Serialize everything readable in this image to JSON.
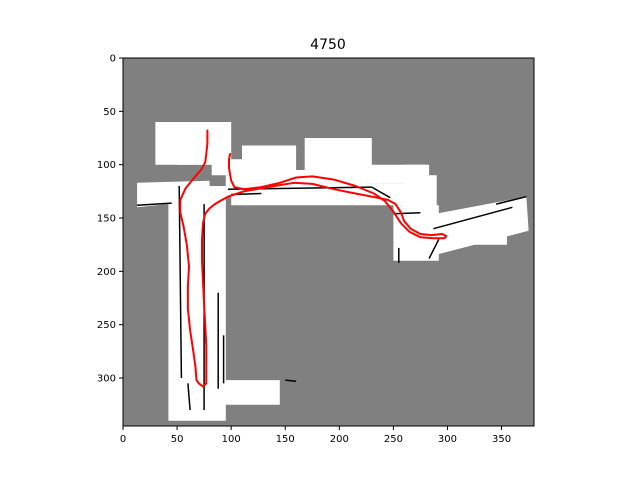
{
  "chart_data": {
    "type": "map",
    "title": "4750",
    "xlim": [
      0,
      380
    ],
    "ylim": [
      345,
      0
    ],
    "xticks": [
      0,
      50,
      100,
      150,
      200,
      250,
      300,
      350
    ],
    "yticks": [
      0,
      50,
      100,
      150,
      200,
      250,
      300
    ],
    "xtick_labels": [
      "0",
      "50",
      "100",
      "150",
      "200",
      "250",
      "300",
      "350"
    ],
    "ytick_labels": [
      "0",
      "50",
      "100",
      "150",
      "200",
      "250",
      "300"
    ],
    "colors": {
      "unknown": "#808080",
      "free": "#ffffff",
      "occupied": "#000000",
      "trajectory": "#ff0000"
    },
    "free_regions": [
      [
        [
          13,
          117
        ],
        [
          80,
          115
        ],
        [
          80,
          133
        ],
        [
          13,
          140
        ]
      ],
      [
        [
          42,
          120
        ],
        [
          95,
          120
        ],
        [
          95,
          340
        ],
        [
          42,
          340
        ]
      ],
      [
        [
          58,
          302
        ],
        [
          145,
          302
        ],
        [
          145,
          325
        ],
        [
          58,
          325
        ]
      ],
      [
        [
          82,
          95
        ],
        [
          115,
          95
        ],
        [
          115,
          110
        ],
        [
          82,
          110
        ]
      ],
      [
        [
          95,
          110
        ],
        [
          115,
          110
        ],
        [
          115,
          130
        ],
        [
          95,
          130
        ]
      ],
      [
        [
          100,
          105
        ],
        [
          225,
          105
        ],
        [
          225,
          118
        ],
        [
          100,
          118
        ]
      ],
      [
        [
          110,
          82
        ],
        [
          160,
          82
        ],
        [
          160,
          105
        ],
        [
          110,
          105
        ]
      ],
      [
        [
          168,
          75
        ],
        [
          230,
          75
        ],
        [
          230,
          105
        ],
        [
          168,
          105
        ]
      ],
      [
        [
          100,
          118
        ],
        [
          270,
          118
        ],
        [
          270,
          138
        ],
        [
          100,
          138
        ]
      ],
      [
        [
          210,
          100
        ],
        [
          280,
          100
        ],
        [
          280,
          118
        ],
        [
          210,
          118
        ]
      ],
      [
        [
          260,
          100
        ],
        [
          283,
          100
        ],
        [
          283,
          140
        ],
        [
          260,
          140
        ]
      ],
      [
        [
          270,
          110
        ],
        [
          290,
          110
        ],
        [
          290,
          150
        ],
        [
          270,
          150
        ]
      ],
      [
        [
          250,
          138
        ],
        [
          292,
          138
        ],
        [
          292,
          190
        ],
        [
          250,
          190
        ]
      ],
      [
        [
          268,
          150
        ],
        [
          373,
          130
        ],
        [
          375,
          162
        ],
        [
          268,
          190
        ]
      ],
      [
        [
          320,
          155
        ],
        [
          355,
          155
        ],
        [
          355,
          175
        ],
        [
          320,
          175
        ]
      ],
      [
        [
          30,
          60
        ],
        [
          100,
          60
        ],
        [
          100,
          100
        ],
        [
          30,
          100
        ]
      ],
      [
        [
          50,
          90
        ],
        [
          80,
          90
        ],
        [
          80,
          100
        ],
        [
          50,
          100
        ]
      ]
    ],
    "obstacles": [
      [
        [
          13,
          138
        ],
        [
          45,
          136
        ]
      ],
      [
        [
          97,
          123
        ],
        [
          230,
          121
        ]
      ],
      [
        [
          230,
          121
        ],
        [
          247,
          131
        ]
      ],
      [
        [
          100,
          128
        ],
        [
          128,
          127
        ]
      ],
      [
        [
          75,
          137
        ],
        [
          75,
          330
        ]
      ],
      [
        [
          88,
          220
        ],
        [
          88,
          310
        ]
      ],
      [
        [
          93,
          260
        ],
        [
          93,
          305
        ]
      ],
      [
        [
          52,
          120
        ],
        [
          54,
          300
        ]
      ],
      [
        [
          60,
          305
        ],
        [
          62,
          330
        ]
      ],
      [
        [
          255,
          178
        ],
        [
          255,
          192
        ]
      ],
      [
        [
          250,
          146
        ],
        [
          275,
          145
        ]
      ],
      [
        [
          283,
          188
        ],
        [
          292,
          170
        ]
      ],
      [
        [
          287,
          160
        ],
        [
          360,
          140
        ]
      ],
      [
        [
          345,
          137
        ],
        [
          373,
          130
        ]
      ],
      [
        [
          150,
          302
        ],
        [
          160,
          303
        ]
      ]
    ],
    "trajectory": [
      [
        78,
        68
      ],
      [
        78,
        80
      ],
      [
        77,
        90
      ],
      [
        76,
        98
      ],
      [
        72,
        105
      ],
      [
        66,
        112
      ],
      [
        58,
        122
      ],
      [
        53,
        133
      ],
      [
        53,
        145
      ],
      [
        56,
        158
      ],
      [
        59,
        175
      ],
      [
        61,
        195
      ],
      [
        60,
        215
      ],
      [
        60,
        235
      ],
      [
        62,
        255
      ],
      [
        65,
        275
      ],
      [
        67,
        290
      ],
      [
        68,
        302
      ],
      [
        70,
        305
      ],
      [
        74,
        308
      ],
      [
        77,
        305
      ],
      [
        77,
        290
      ],
      [
        77,
        270
      ],
      [
        76,
        250
      ],
      [
        75,
        230
      ],
      [
        74,
        210
      ],
      [
        73,
        190
      ],
      [
        73,
        170
      ],
      [
        74,
        155
      ],
      [
        76,
        146
      ],
      [
        80,
        141
      ],
      [
        85,
        137
      ],
      [
        90,
        134
      ],
      [
        97,
        130
      ],
      [
        103,
        128
      ],
      [
        112,
        125
      ],
      [
        123,
        123
      ],
      [
        140,
        120
      ],
      [
        158,
        117
      ],
      [
        175,
        118
      ],
      [
        195,
        123
      ],
      [
        215,
        127
      ],
      [
        235,
        131
      ],
      [
        245,
        133
      ],
      [
        252,
        137
      ],
      [
        257,
        145
      ],
      [
        260,
        153
      ],
      [
        266,
        160
      ],
      [
        275,
        165
      ],
      [
        285,
        166
      ],
      [
        295,
        165
      ],
      [
        299,
        167
      ],
      [
        297,
        169
      ],
      [
        287,
        169
      ],
      [
        275,
        168
      ],
      [
        265,
        163
      ],
      [
        257,
        155
      ],
      [
        250,
        144
      ],
      [
        242,
        134
      ],
      [
        232,
        127
      ],
      [
        215,
        120
      ],
      [
        195,
        114
      ],
      [
        175,
        111
      ],
      [
        160,
        112
      ],
      [
        145,
        117
      ],
      [
        128,
        121
      ],
      [
        112,
        123
      ],
      [
        103,
        121
      ],
      [
        100,
        115
      ],
      [
        98,
        103
      ],
      [
        98,
        95
      ],
      [
        99,
        90
      ]
    ]
  }
}
